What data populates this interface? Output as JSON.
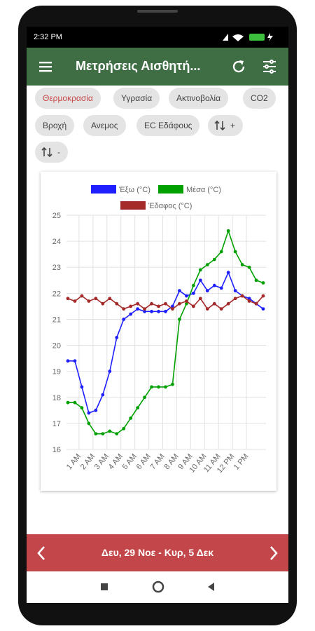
{
  "status_bar": {
    "time": "2:32 PM"
  },
  "app_bar": {
    "title": "Μετρήσεις Αισθητή..."
  },
  "chips": [
    "Θερμοκρασία",
    "Υγρασία",
    "Ακτινοβολία",
    "CO2",
    "Βροχή",
    "Ανεμος",
    "EC Εδάφους",
    "+",
    "-"
  ],
  "date_bar": {
    "range": "Δευ, 29 Νοε - Κυρ, 5 Δεκ"
  },
  "chart_data": {
    "type": "line",
    "x": [
      0.2,
      0.7,
      1.2,
      1.7,
      2.2,
      2.7,
      3.2,
      3.7,
      4.2,
      4.7,
      5.2,
      5.7,
      6.2,
      6.7,
      7.2,
      7.7,
      8.2,
      8.7,
      9.2,
      9.7,
      10.2,
      10.7,
      11.2,
      11.7,
      12.2,
      12.7,
      13.2,
      13.7,
      14.2
    ],
    "series": [
      {
        "name": "Έξω (°C)",
        "color": "#1f1fff",
        "values": [
          19.4,
          19.4,
          18.4,
          17.4,
          17.5,
          18.1,
          19.0,
          20.3,
          21.0,
          21.2,
          21.4,
          21.3,
          21.3,
          21.3,
          21.3,
          21.5,
          22.1,
          21.9,
          22.0,
          22.5,
          22.1,
          22.3,
          22.2,
          22.8,
          22.1,
          21.9,
          21.8,
          21.6,
          21.4
        ]
      },
      {
        "name": "Μέσα (°C)",
        "color": "#00a000",
        "values": [
          17.8,
          17.8,
          17.6,
          17.0,
          16.6,
          16.6,
          16.7,
          16.6,
          16.8,
          17.2,
          17.6,
          18.0,
          18.4,
          18.4,
          18.4,
          18.5,
          21.0,
          21.6,
          22.3,
          22.9,
          23.1,
          23.3,
          23.6,
          24.4,
          23.6,
          23.1,
          23.0,
          22.5,
          22.4
        ]
      },
      {
        "name": "Έδαφος (°C)",
        "color": "#a52a2a",
        "values": [
          21.8,
          21.7,
          21.9,
          21.7,
          21.8,
          21.6,
          21.8,
          21.6,
          21.4,
          21.5,
          21.6,
          21.4,
          21.6,
          21.5,
          21.6,
          21.4,
          21.6,
          21.7,
          21.5,
          21.8,
          21.4,
          21.6,
          21.4,
          21.6,
          21.8,
          21.9,
          21.7,
          21.6,
          21.9
        ]
      }
    ],
    "xlim": [
      0.1,
      14.4
    ],
    "xticks": [
      {
        "value": 1,
        "label": "1 AM"
      },
      {
        "value": 2,
        "label": "2 AM"
      },
      {
        "value": 3,
        "label": "3 AM"
      },
      {
        "value": 4,
        "label": "4 AM"
      },
      {
        "value": 5,
        "label": "5 AM"
      },
      {
        "value": 6,
        "label": "6 AM"
      },
      {
        "value": 7,
        "label": "7 AM"
      },
      {
        "value": 8,
        "label": "8 AM"
      },
      {
        "value": 9,
        "label": "9 AM"
      },
      {
        "value": 10,
        "label": "10 AM"
      },
      {
        "value": 11,
        "label": "11 AM"
      },
      {
        "value": 12,
        "label": "12 PM"
      },
      {
        "value": 13,
        "label": "1 PM"
      }
    ],
    "ylim": [
      16,
      25
    ],
    "yticks": [
      16,
      17,
      18,
      19,
      20,
      21,
      22,
      23,
      24,
      25
    ],
    "grid": true
  }
}
